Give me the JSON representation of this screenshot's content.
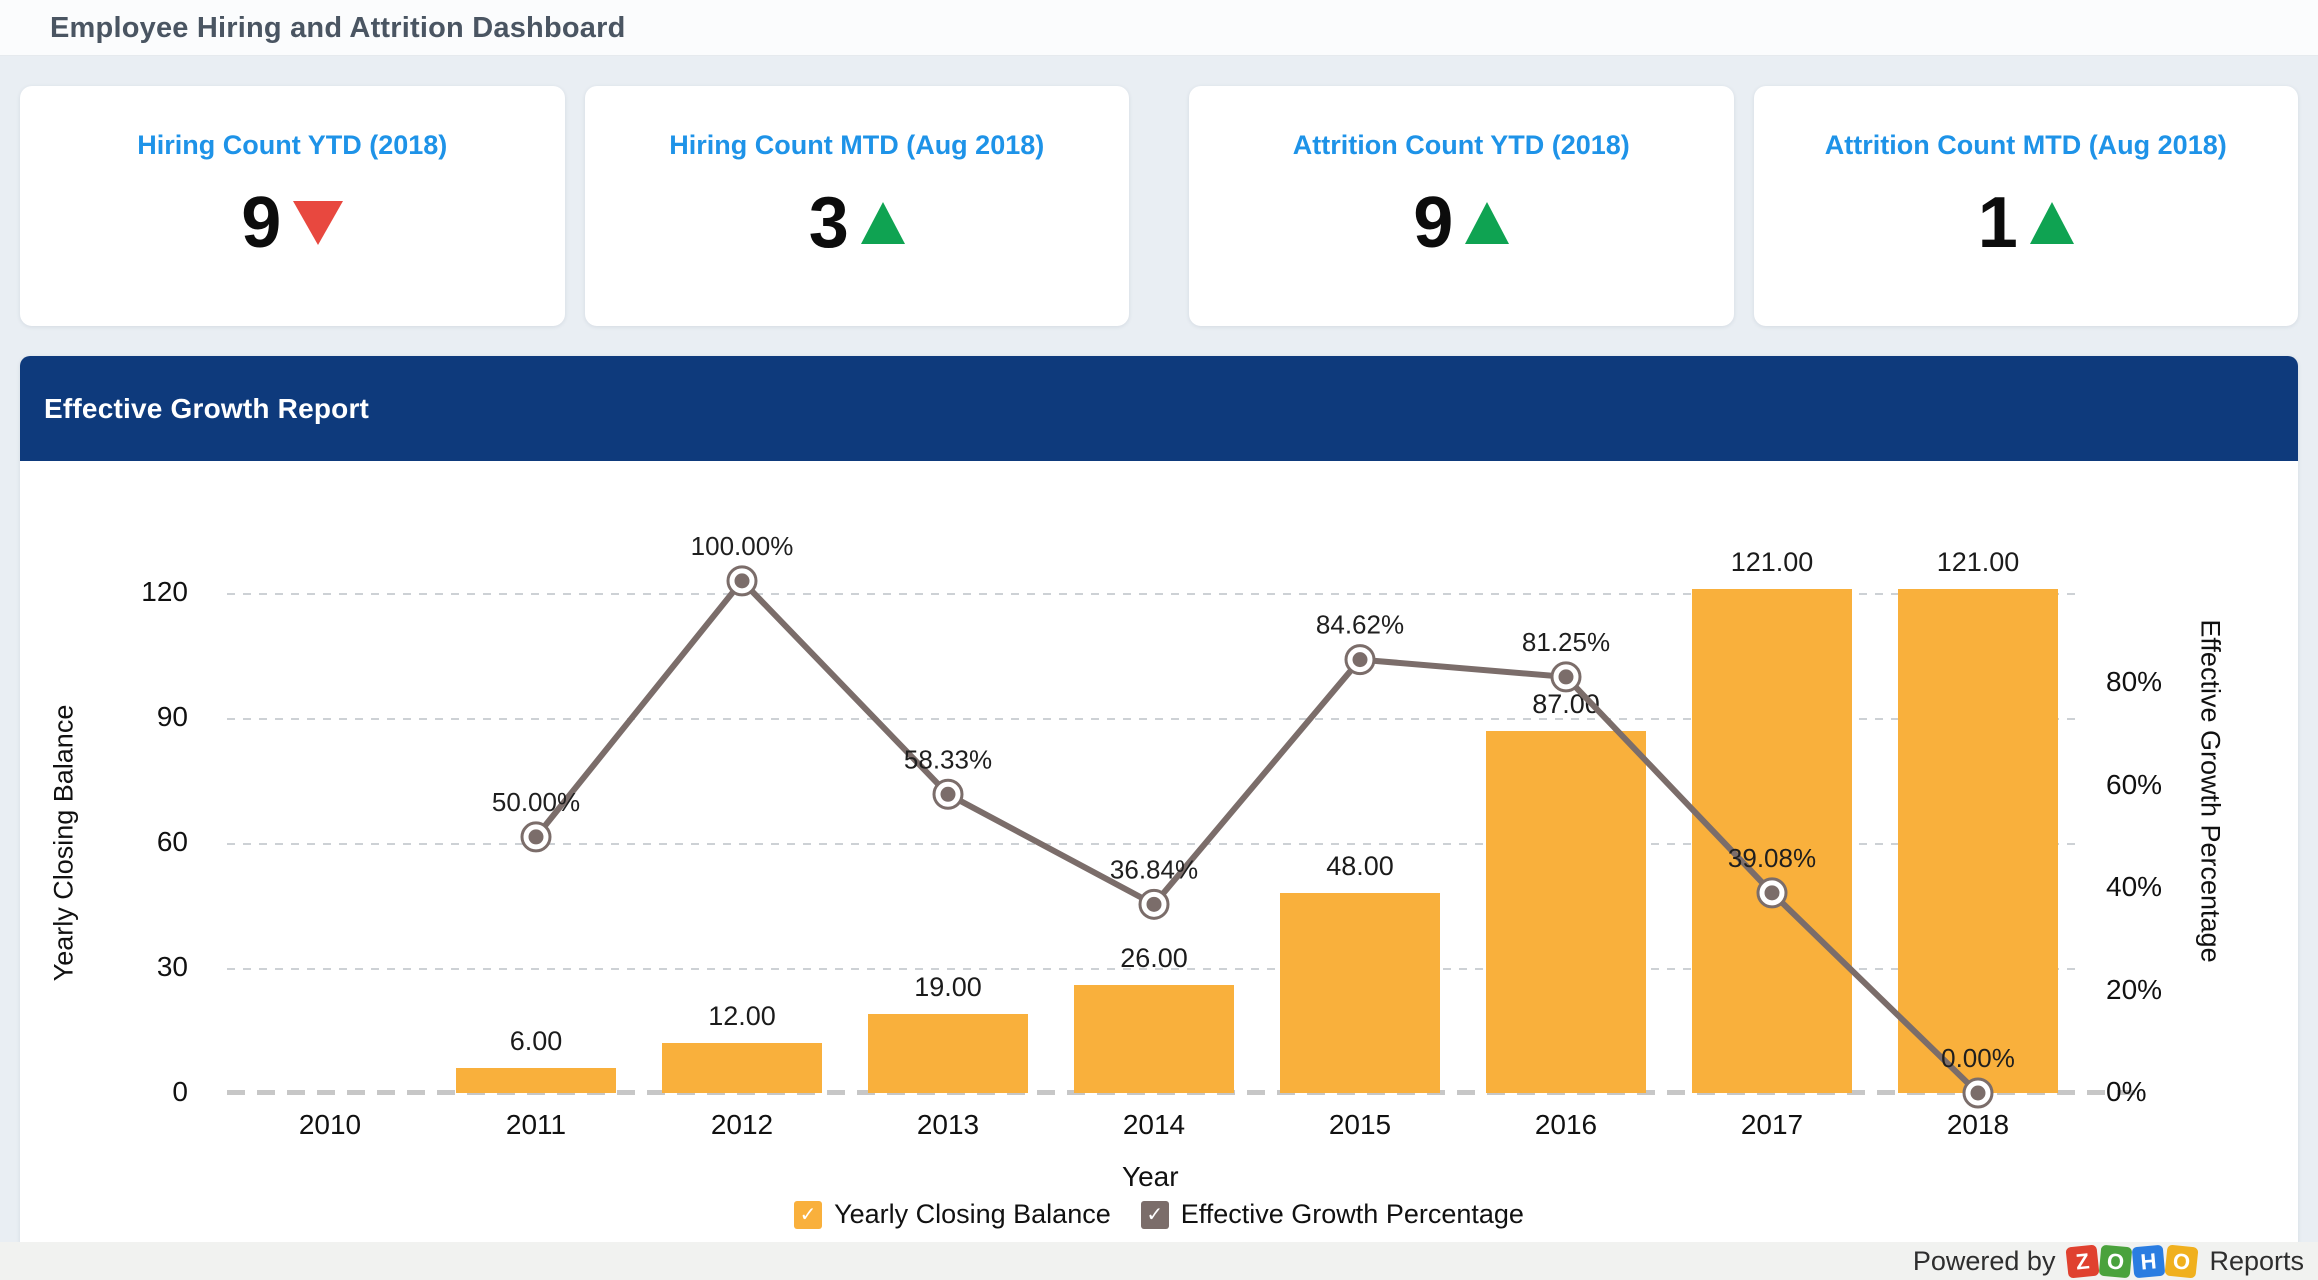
{
  "page_title": "Employee Hiring and Attrition Dashboard",
  "kpi_cards": [
    {
      "title": "Hiring Count YTD (2018)",
      "value": "9",
      "trend": "down",
      "trend_color": "#e8483f"
    },
    {
      "title": "Hiring Count MTD (Aug 2018)",
      "value": "3",
      "trend": "up",
      "trend_color": "#0fa352"
    },
    {
      "title": "Attrition Count YTD (2018)",
      "value": "9",
      "trend": "up",
      "trend_color": "#0fa352"
    },
    {
      "title": "Attrition Count MTD (Aug 2018)",
      "value": "1",
      "trend": "up",
      "trend_color": "#0fa352"
    }
  ],
  "report": {
    "title": "Effective Growth Report",
    "header_bg": "#0e3a7c"
  },
  "chart_data": {
    "type": "combo-bar-line",
    "categories": [
      "2010",
      "2011",
      "2012",
      "2013",
      "2014",
      "2015",
      "2016",
      "2017",
      "2018"
    ],
    "series": [
      {
        "name": "Yearly Closing Balance",
        "type": "bar",
        "axis": "left",
        "color": "#f9b03c",
        "values": [
          null,
          6,
          12,
          19,
          26,
          48,
          87,
          121,
          121
        ],
        "labels": [
          "",
          "6.00",
          "12.00",
          "19.00",
          "26.00",
          "48.00",
          "87.00",
          "121.00",
          "121.00"
        ]
      },
      {
        "name": "Effective Growth Percentage",
        "type": "line",
        "axis": "right",
        "color": "#7b6d6a",
        "values": [
          null,
          50,
          100,
          58.33,
          36.84,
          84.62,
          81.25,
          39.08,
          0
        ],
        "labels": [
          "",
          "50.00%",
          "100.00%",
          "58.33%",
          "36.84%",
          "84.62%",
          "81.25%",
          "39.08%",
          "0.00%"
        ]
      }
    ],
    "xlabel": "Year",
    "left_axis": {
      "label": "Yearly Closing Balance",
      "ticks": [
        "0",
        "30",
        "60",
        "90",
        "120"
      ],
      "tick_values": [
        0,
        30,
        60,
        90,
        120
      ],
      "max": 147
    },
    "right_axis": {
      "label": "Effective Growth Percentage",
      "ticks": [
        "0%",
        "20%",
        "40%",
        "60%",
        "80%"
      ],
      "tick_values": [
        0,
        20,
        40,
        60,
        80
      ],
      "max": 119.5
    },
    "grid": true,
    "grid_style": "dashed",
    "legend_position": "bottom"
  },
  "footer": {
    "powered_by": "Powered by",
    "suffix": "Reports",
    "brand": [
      {
        "letter": "Z",
        "color": "#e0412f",
        "rotation": -6
      },
      {
        "letter": "O",
        "color": "#4aa23c",
        "rotation": 5
      },
      {
        "letter": "H",
        "color": "#2a7de1",
        "rotation": -5
      },
      {
        "letter": "O",
        "color": "#f0b01e",
        "rotation": 6
      }
    ]
  }
}
